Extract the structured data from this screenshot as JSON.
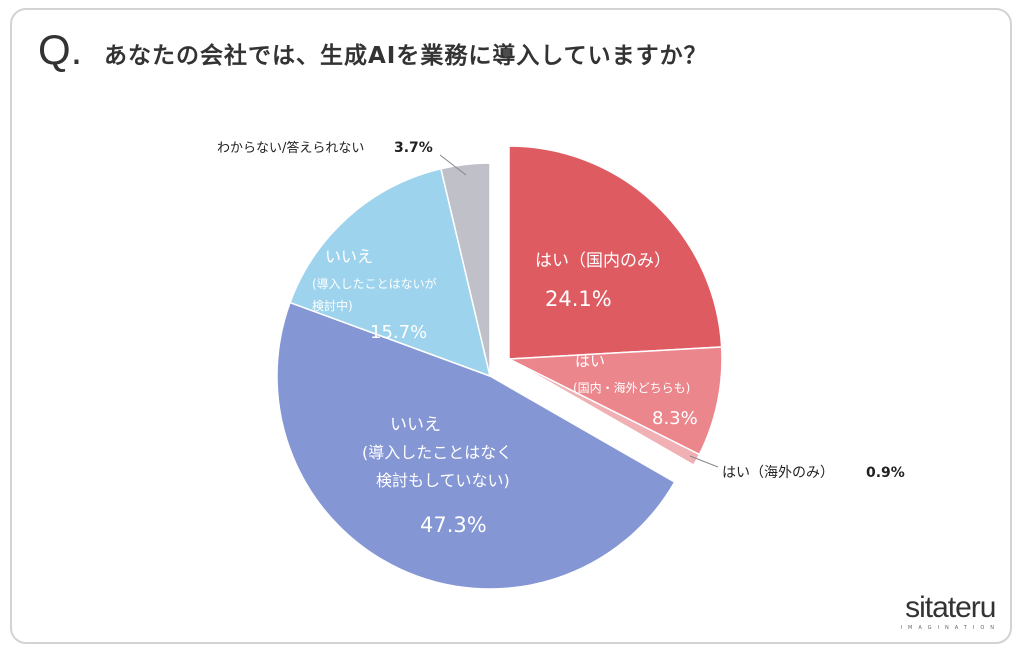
{
  "header": {
    "q_mark": "Q.",
    "title": "あなたの会社では、生成AIを業務に導入していますか？"
  },
  "logo": {
    "wordmark": "sitateru",
    "sub": "IMAGINATION"
  },
  "chart_data": {
    "type": "pie",
    "title": "あなたの会社では、生成AIを業務に導入していますか？",
    "start": "12 o'clock, clockwise",
    "exploded": [
      "はい（国内のみ）",
      "はい（国内・海外どちらも）",
      "はい（海外のみ）"
    ],
    "slices": [
      {
        "label": "はい（国内のみ）",
        "lines": [
          "はい（国内のみ）"
        ],
        "value": 24.1,
        "value_label": "24.1%",
        "color": "#de5b61"
      },
      {
        "label": "はい（国内・海外どちらも）",
        "lines": [
          "はい",
          "(国内・海外どちらも)"
        ],
        "value": 8.3,
        "value_label": "8.3%",
        "color": "#eb868c"
      },
      {
        "label": "はい（海外のみ）",
        "lines": [
          "はい（海外のみ）"
        ],
        "value": 0.9,
        "value_label": "0.9%",
        "color": "#f0b0b4"
      },
      {
        "label": "いいえ（導入したことはなく検討もしていない）",
        "lines": [
          "いいえ",
          "(導入したことはなく",
          "検討もしていない)"
        ],
        "value": 47.3,
        "value_label": "47.3%",
        "color": "#8496d4"
      },
      {
        "label": "いいえ（導入したことはないが検討中）",
        "lines": [
          "いいえ",
          "(導入したことはないが",
          "検討中)"
        ],
        "value": 15.7,
        "value_label": "15.7%",
        "color": "#9dd3ec"
      },
      {
        "label": "わからない/答えられない",
        "lines": [
          "わからない/答えられない"
        ],
        "value": 3.7,
        "value_label": "3.7%",
        "color": "#bfc0c8"
      }
    ]
  }
}
